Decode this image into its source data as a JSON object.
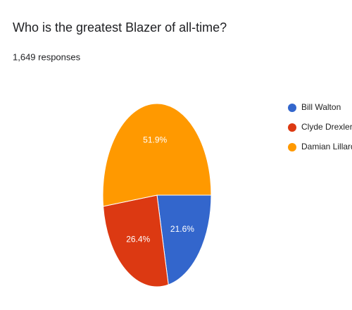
{
  "chart_data": {
    "type": "pie",
    "title": "Who is the greatest Blazer of all-time?",
    "subtitle": "1,649 responses",
    "categories": [
      "Bill Walton",
      "Clyde Drexler",
      "Damian Lillard"
    ],
    "values": [
      21.6,
      26.4,
      51.9
    ],
    "value_labels": [
      "21.6%",
      "26.4%",
      "51.9%"
    ],
    "colors": [
      "#3366cc",
      "#dc3912",
      "#ff9900"
    ],
    "legend": "right"
  }
}
